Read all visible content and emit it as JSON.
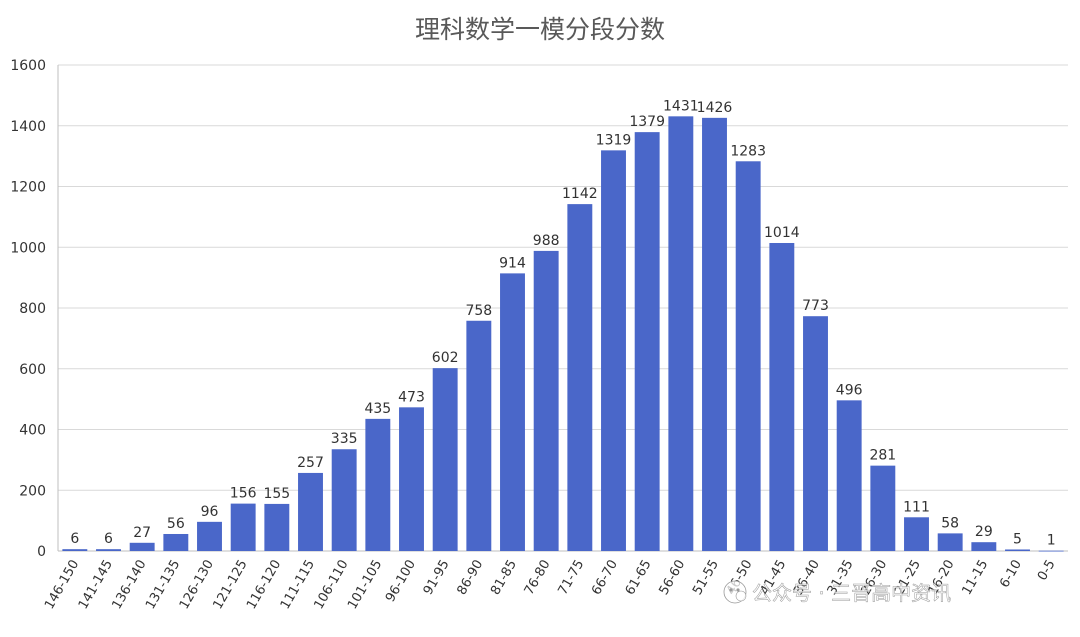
{
  "chart_data": {
    "type": "bar",
    "title": "理科数学一模分段分数",
    "xlabel": "",
    "ylabel": "",
    "ylim": [
      0,
      1600
    ],
    "yticks": [
      0,
      200,
      400,
      600,
      800,
      1000,
      1200,
      1400,
      1600
    ],
    "grid": true,
    "legend": "none",
    "bar_color": "#4a67c9",
    "categories": [
      "146-150",
      "141-145",
      "136-140",
      "131-135",
      "126-130",
      "121-125",
      "116-120",
      "111-115",
      "106-110",
      "101-105",
      "96-100",
      "91-95",
      "86-90",
      "81-85",
      "76-80",
      "71-75",
      "66-70",
      "61-65",
      "56-60",
      "51-55",
      "46-50",
      "41-45",
      "36-40",
      "31-35",
      "26-30",
      "21-25",
      "16-20",
      "11-15",
      "6-10",
      "0-5"
    ],
    "values": [
      6,
      6,
      27,
      56,
      96,
      156,
      155,
      257,
      335,
      435,
      473,
      602,
      758,
      914,
      988,
      1142,
      1319,
      1379,
      1431,
      1426,
      1283,
      1014,
      773,
      496,
      281,
      111,
      58,
      29,
      5,
      1
    ]
  },
  "watermark": {
    "text": "公众号 · 三晋高中资讯",
    "icon": "wechat-icon"
  }
}
